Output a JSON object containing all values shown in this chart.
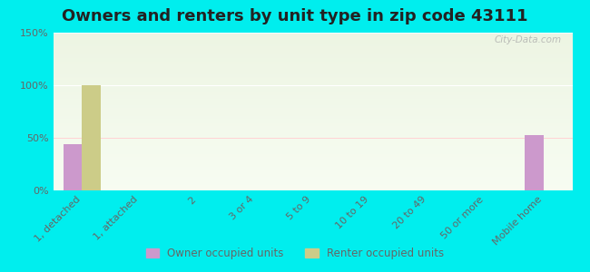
{
  "title": "Owners and renters by unit type in zip code 43111",
  "categories": [
    "1, detached",
    "1, attached",
    "2",
    "3 or 4",
    "5 to 9",
    "10 to 19",
    "20 to 49",
    "50 or more",
    "Mobile home"
  ],
  "owner_values": [
    44,
    0,
    0,
    0,
    0,
    0,
    0,
    0,
    53
  ],
  "renter_values": [
    100,
    0,
    0,
    0,
    0,
    0,
    0,
    0,
    0
  ],
  "owner_color": "#cc99cc",
  "renter_color": "#cccc88",
  "ylim": [
    0,
    150
  ],
  "yticks": [
    0,
    50,
    100,
    150
  ],
  "ytick_labels": [
    "0%",
    "50%",
    "100%",
    "150%"
  ],
  "background_color": "#00eeee",
  "plot_bg_gradient_top": "#e8eedd",
  "plot_bg_gradient_bottom": "#f5f8f0",
  "bar_width": 0.32,
  "title_fontsize": 13,
  "legend_owner_label": "Owner occupied units",
  "legend_renter_label": "Renter occupied units",
  "watermark": "City-Data.com",
  "hline_color": "#ffcccc",
  "tick_label_color": "#666666",
  "tick_fontsize": 8
}
